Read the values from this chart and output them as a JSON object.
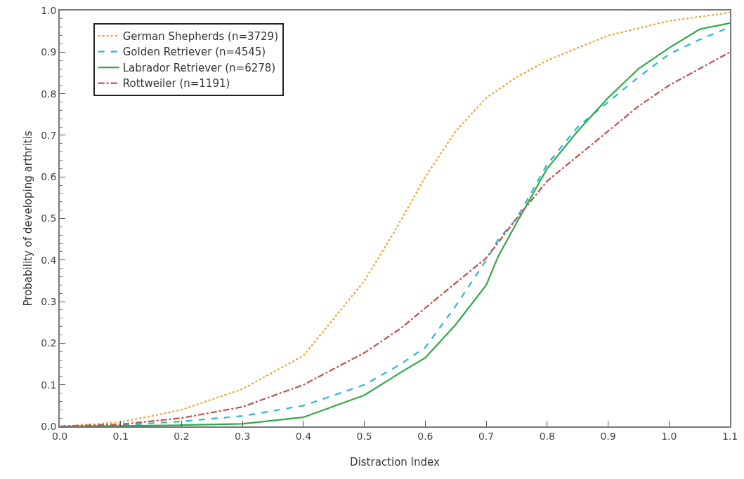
{
  "chart_data": {
    "type": "line",
    "xlabel": "Distraction Index",
    "ylabel": "Probability of developing arthritis",
    "xlim": [
      0,
      1.1
    ],
    "ylim": [
      0,
      1
    ],
    "xticks": [
      {
        "value": 0,
        "label": "0.0"
      },
      0.1,
      0.2,
      0.3,
      0.4,
      0.5,
      0.6,
      0.7,
      0.8,
      0.9,
      {
        "value": 1,
        "label": "1.0"
      },
      1.1
    ],
    "yticks": [
      {
        "value": 0,
        "label": "0.0"
      },
      0.1,
      0.2,
      0.3,
      0.4,
      0.5,
      0.6,
      0.7,
      0.8,
      0.9,
      {
        "value": 1,
        "label": "1.0"
      }
    ],
    "grid": false,
    "legend": "top left",
    "marker": "none",
    "series": [
      {
        "name": "German Shepherds (n=3729)",
        "color": "#f0a030",
        "line_style": "dotted",
        "x": [
          0,
          0.1,
          0.2,
          0.3,
          0.4,
          0.5,
          0.55,
          0.6,
          0.65,
          0.7,
          0.75,
          0.8,
          0.9,
          1.0,
          1.1
        ],
        "values": [
          0,
          0.01,
          0.04,
          0.09,
          0.17,
          0.35,
          0.47,
          0.6,
          0.71,
          0.79,
          0.84,
          0.88,
          0.94,
          0.975,
          0.995
        ]
      },
      {
        "name": "Golden Retriever (n=4545)",
        "color": "#29b6d8",
        "line_style": "dashed",
        "x": [
          0,
          0.1,
          0.2,
          0.3,
          0.4,
          0.5,
          0.56,
          0.6,
          0.65,
          0.7,
          0.72,
          0.75,
          0.8,
          0.85,
          0.9,
          0.95,
          1.0,
          1.05,
          1.1
        ],
        "values": [
          0,
          0.003,
          0.012,
          0.025,
          0.05,
          0.1,
          0.15,
          0.19,
          0.29,
          0.4,
          0.45,
          0.5,
          0.63,
          0.72,
          0.78,
          0.84,
          0.895,
          0.93,
          0.96
        ]
      },
      {
        "name": "Labrador Retriever (n=6278)",
        "color": "#2ea84a",
        "line_style": "solid",
        "x": [
          0,
          0.1,
          0.2,
          0.3,
          0.4,
          0.5,
          0.56,
          0.6,
          0.65,
          0.7,
          0.72,
          0.75,
          0.8,
          0.85,
          0.9,
          0.95,
          1.0,
          1.05,
          1.1
        ],
        "values": [
          0,
          0.001,
          0.003,
          0.006,
          0.022,
          0.075,
          0.13,
          0.165,
          0.245,
          0.34,
          0.41,
          0.49,
          0.62,
          0.71,
          0.79,
          0.86,
          0.91,
          0.955,
          0.97
        ]
      },
      {
        "name": "Rottweiler (n=1191)",
        "color": "#c0504d",
        "line_style": "dashdot",
        "x": [
          0,
          0.1,
          0.2,
          0.3,
          0.4,
          0.5,
          0.56,
          0.6,
          0.65,
          0.7,
          0.75,
          0.8,
          0.85,
          0.9,
          0.95,
          1.0,
          1.05,
          1.1
        ],
        "values": [
          0,
          0.005,
          0.02,
          0.047,
          0.1,
          0.177,
          0.236,
          0.285,
          0.345,
          0.405,
          0.5,
          0.59,
          0.65,
          0.71,
          0.77,
          0.82,
          0.86,
          0.9
        ]
      }
    ]
  }
}
